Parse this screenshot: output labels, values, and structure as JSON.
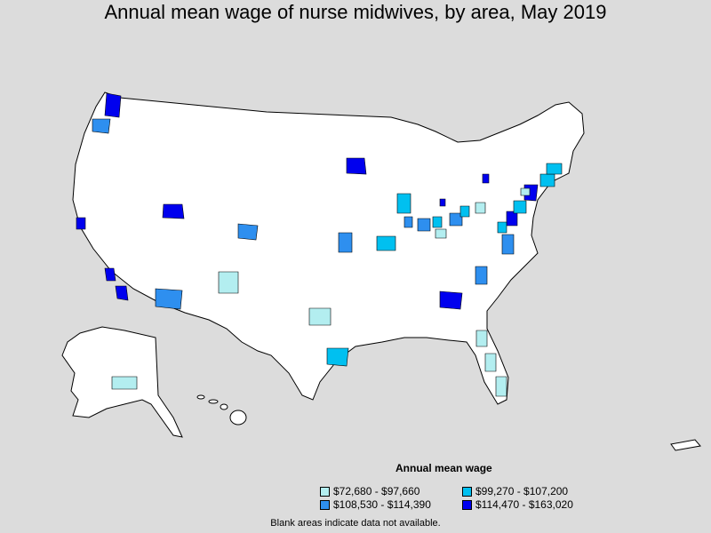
{
  "title": "Annual mean wage of nurse midwives, by area, May 2019",
  "legend": {
    "title": "Annual mean wage",
    "items": [
      {
        "label": "$72,680 - $97,660",
        "color": "#b3eef0"
      },
      {
        "label": "$99,270 - $107,200",
        "color": "#00c0f0"
      },
      {
        "label": "$108,530 - $114,390",
        "color": "#2e8fef"
      },
      {
        "label": "$114,470 - $163,020",
        "color": "#0000ee"
      }
    ]
  },
  "footnote": "Blank areas indicate data not available."
}
